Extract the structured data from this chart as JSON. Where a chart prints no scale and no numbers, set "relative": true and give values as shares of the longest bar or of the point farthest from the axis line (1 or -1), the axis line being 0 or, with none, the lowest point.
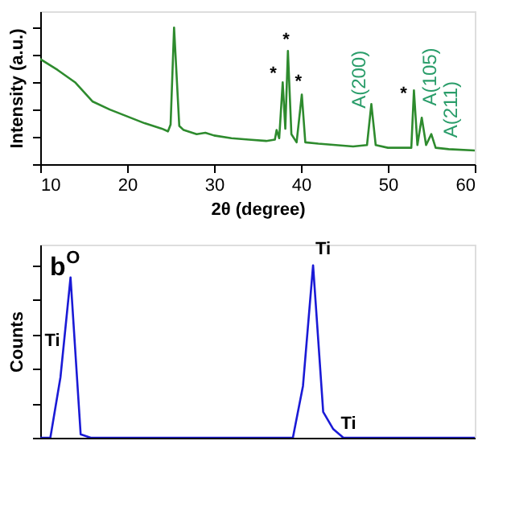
{
  "chart_data": [
    {
      "type": "line",
      "relative": true,
      "xlabel": "2θ (degree)",
      "ylabel": "Intensity (a.u.)",
      "xlim": [
        10,
        60
      ],
      "xticks": [
        10,
        20,
        30,
        40,
        50,
        60
      ],
      "tick_labels": "x",
      "grid": false,
      "x": [
        10,
        12,
        14,
        16,
        18,
        20,
        22,
        24,
        24.7,
        25.0,
        25.4,
        26.0,
        26.5,
        28,
        29,
        30,
        32,
        34,
        36,
        37,
        37.2,
        37.5,
        37.9,
        38.2,
        38.5,
        38.9,
        39.5,
        40.1,
        40.5,
        42,
        44,
        46,
        47.6,
        48.1,
        48.6,
        50,
        52,
        52.7,
        53.0,
        53.4,
        53.9,
        54.4,
        55.0,
        55.5,
        57,
        60
      ],
      "series": [
        {
          "color": "#2e8b2e",
          "values": [
            0.77,
            0.69,
            0.6,
            0.46,
            0.4,
            0.35,
            0.3,
            0.26,
            0.24,
            0.29,
            1.0,
            0.28,
            0.25,
            0.22,
            0.23,
            0.21,
            0.19,
            0.18,
            0.17,
            0.18,
            0.25,
            0.19,
            0.6,
            0.26,
            0.83,
            0.22,
            0.16,
            0.51,
            0.16,
            0.15,
            0.14,
            0.13,
            0.14,
            0.44,
            0.14,
            0.12,
            0.12,
            0.12,
            0.54,
            0.14,
            0.34,
            0.14,
            0.22,
            0.12,
            0.11,
            0.1
          ]
        }
      ],
      "annotations": [
        "*",
        "*",
        "*",
        "*",
        "A(200)",
        "A(105)",
        "A(211)"
      ]
    },
    {
      "type": "line",
      "relative": true,
      "ylabel": "Counts",
      "tick_labels": false,
      "grid": false,
      "categories": [
        null,
        null,
        null,
        null,
        null,
        null,
        null,
        null,
        null,
        null,
        null,
        null,
        null,
        null,
        null,
        null,
        null,
        null,
        null,
        null,
        null,
        null,
        null,
        null,
        null,
        null,
        null,
        null,
        null,
        null,
        null,
        null,
        null,
        null,
        null,
        null,
        null,
        null,
        null,
        null,
        null,
        null,
        null,
        null
      ],
      "series": [
        {
          "color": "#1a1ad6",
          "values": [
            0,
            0,
            0.35,
            0.93,
            0.02,
            0,
            0,
            0,
            0,
            0,
            0,
            0,
            0,
            0,
            0,
            0,
            0,
            0,
            0,
            0,
            0,
            0,
            0,
            0,
            0,
            0,
            0.3,
            1.0,
            0.15,
            0.05,
            0,
            0,
            0,
            0,
            0,
            0,
            0,
            0,
            0,
            0,
            0,
            0,
            0,
            0
          ]
        }
      ],
      "annotations": [
        "b",
        "Ti",
        "O",
        "Ti",
        "Ti"
      ]
    }
  ]
}
